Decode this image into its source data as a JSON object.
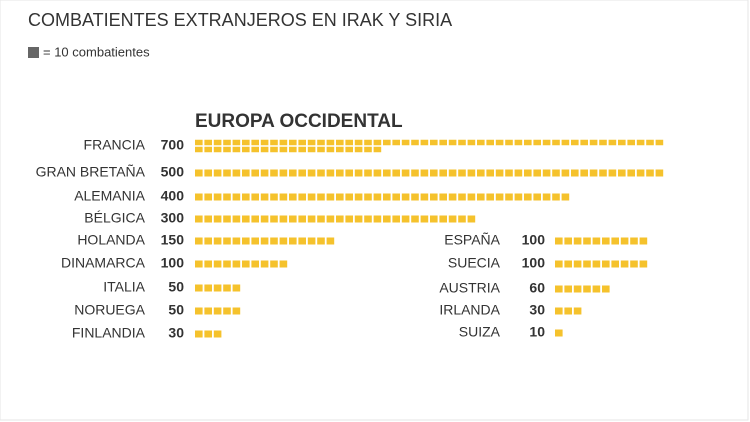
{
  "chart_data": {
    "type": "pictogram",
    "title": "COMBATIENTES EXTRANJEROS EN IRAK Y SIRIA",
    "legend": {
      "value": 10,
      "label": "= 10 combatientes"
    },
    "section": "EUROPA OCCIDENTAL",
    "color": "#f5c22c",
    "categories": [
      "FRANCIA",
      "GRAN BRETAÑA",
      "ALEMANIA",
      "BÉLGICA",
      "HOLANDA",
      "DINAMARCA",
      "ITALIA",
      "NORUEGA",
      "FINLANDIA",
      "ESPAÑA",
      "SUECIA",
      "AUSTRIA",
      "IRLANDA",
      "SUIZA"
    ],
    "values": [
      700,
      500,
      400,
      300,
      150,
      100,
      50,
      50,
      30,
      100,
      100,
      60,
      30,
      10
    ]
  }
}
